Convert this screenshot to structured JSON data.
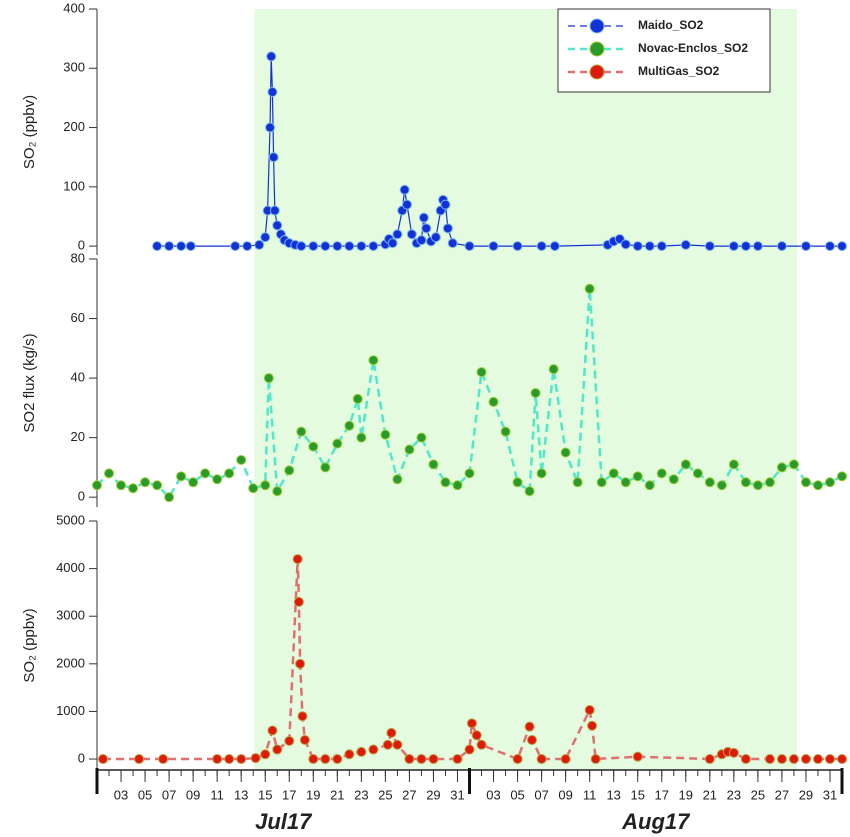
{
  "chart_data": [
    {
      "type": "scatter",
      "ylabel": "SO₂ (ppbv)",
      "xlim": [
        1,
        63
      ],
      "ylim": [
        -15,
        400
      ],
      "yticks": [
        0,
        100,
        200,
        300,
        400
      ],
      "highlight_range": [
        14.1,
        59.25
      ],
      "highlight_color": "#e4fbdf",
      "legend": "upper right",
      "series": [
        {
          "name": "Maido_SO2",
          "color": "#1232d8",
          "edge": "#7ab8ee",
          "line_color": "#1232d8",
          "line_style": "solid",
          "x": [
            6,
            7,
            8,
            8.8,
            12.5,
            13.5,
            14.5,
            15,
            15.2,
            15.4,
            15.5,
            15.6,
            15.7,
            15.8,
            16,
            16.3,
            16.6,
            17,
            17.5,
            18,
            19,
            20,
            21,
            22,
            23,
            24,
            25,
            25.3,
            25.6,
            26,
            26.4,
            26.6,
            26.8,
            27.2,
            27.6,
            28,
            28.2,
            28.4,
            28.8,
            29.2,
            29.6,
            29.8,
            30,
            30.2,
            30.6,
            32,
            34,
            36,
            38,
            39.1,
            43.5,
            44,
            44.5,
            45,
            46,
            47,
            48,
            50,
            52,
            54,
            55,
            56,
            58,
            60,
            62,
            63
          ],
          "values": [
            0,
            0,
            0,
            0,
            0,
            0,
            2,
            15,
            60,
            200,
            320,
            260,
            150,
            60,
            35,
            20,
            10,
            5,
            2,
            0,
            0,
            0,
            0,
            0,
            0,
            0,
            3,
            12,
            5,
            20,
            60,
            95,
            70,
            20,
            5,
            10,
            48,
            30,
            8,
            15,
            60,
            78,
            70,
            30,
            5,
            0,
            0,
            0,
            0,
            0,
            2,
            8,
            12,
            3,
            0,
            0,
            0,
            2,
            0,
            0,
            0,
            0,
            0,
            0,
            0,
            0
          ]
        }
      ]
    },
    {
      "type": "scatter",
      "ylabel": "SO2 flux (kg/s)",
      "xlim": [
        1,
        63
      ],
      "ylim": [
        -3.3,
        80
      ],
      "yticks": [
        0,
        20,
        40,
        60,
        80
      ],
      "highlight_range": [
        14.1,
        59.25
      ],
      "highlight_color": "#e4fbdf",
      "series": [
        {
          "name": "Novac-Enclos_SO2",
          "color": "#2a9a2a",
          "edge": "#9acd32",
          "line_color": "#50e8c8",
          "line_style": "dashed",
          "x": [
            1,
            2,
            3,
            4,
            5,
            6,
            7,
            8,
            9,
            10,
            11,
            12,
            13,
            14,
            15,
            15.3,
            16,
            17,
            18,
            19,
            20,
            21,
            22,
            22.7,
            23,
            24,
            25,
            26,
            27,
            28,
            29,
            30,
            31,
            32,
            33,
            34,
            35,
            36,
            37,
            37.5,
            38,
            39,
            40,
            41,
            42,
            43,
            44,
            45,
            46,
            47,
            48,
            49,
            50,
            51,
            52,
            53,
            54,
            55,
            56,
            57,
            58,
            59,
            60,
            61,
            62,
            63
          ],
          "values": [
            4,
            8,
            4,
            3,
            5,
            4,
            0,
            7,
            5,
            8,
            6,
            8,
            12.5,
            3,
            4,
            40,
            2,
            9,
            22,
            17,
            10,
            18,
            24,
            33,
            20,
            46,
            21,
            6,
            16,
            20,
            11,
            5,
            4,
            8,
            42,
            32,
            22,
            5,
            2,
            35,
            8,
            43,
            15,
            5,
            70,
            5,
            8,
            5,
            7,
            4,
            8,
            6,
            11,
            8,
            5,
            4,
            11,
            5,
            4,
            5,
            10,
            11,
            5,
            4,
            5,
            7
          ]
        }
      ]
    },
    {
      "type": "scatter",
      "ylabel": "SO₂ (ppbv)",
      "xlim": [
        1,
        63
      ],
      "ylim": [
        -230,
        5000
      ],
      "yticks": [
        0,
        1000,
        2000,
        3000,
        4000,
        5000
      ],
      "highlight_range": [
        14.1,
        59.25
      ],
      "highlight_color": "#e4fbdf",
      "xticks": [
        {
          "value": 3,
          "label": "03"
        },
        {
          "value": 5,
          "label": "05"
        },
        {
          "value": 7,
          "label": "07"
        },
        {
          "value": 9,
          "label": "09"
        },
        11,
        13,
        15,
        17,
        19,
        21,
        23,
        25,
        27,
        29,
        31,
        {
          "value": 34,
          "label": "03"
        },
        {
          "value": 36,
          "label": "05"
        },
        {
          "value": 38,
          "label": "07"
        },
        {
          "value": 40,
          "label": "09"
        },
        {
          "value": 42,
          "label": "11"
        },
        {
          "value": 44,
          "label": "13"
        },
        {
          "value": 46,
          "label": "15"
        },
        {
          "value": 48,
          "label": "17"
        },
        {
          "value": 50,
          "label": "19"
        },
        {
          "value": 52,
          "label": "21"
        },
        {
          "value": 54,
          "label": "23"
        },
        {
          "value": 56,
          "label": "25"
        },
        {
          "value": 58,
          "label": "27"
        },
        {
          "value": 60,
          "label": "29"
        },
        {
          "value": 62,
          "label": "31"
        }
      ],
      "month_ticks": [
        {
          "value": 1,
          "label": "Jul17"
        },
        {
          "value": 32,
          "label": "Aug17"
        },
        {
          "value": 63
        }
      ],
      "series": [
        {
          "name": "MultiGas_SO2",
          "color": "#e01a0a",
          "edge": "#b8a040",
          "line_color": "#e07070",
          "line_style": "dashed",
          "x": [
            1.5,
            4.5,
            6.5,
            11,
            12,
            13,
            14.2,
            15,
            15.6,
            16,
            17,
            17.7,
            17.8,
            17.9,
            18.1,
            18.3,
            19,
            20,
            21,
            22,
            23,
            24,
            25.2,
            25.5,
            26,
            27,
            28,
            29,
            31,
            32,
            32.2,
            32.6,
            33,
            36,
            37,
            37.2,
            38,
            40,
            42,
            42.2,
            42.5,
            46,
            52,
            53,
            53.5,
            54,
            55,
            57,
            58,
            59,
            60,
            61,
            62,
            63
          ],
          "values": [
            0,
            0,
            0,
            0,
            0,
            0,
            20,
            100,
            600,
            200,
            380,
            4200,
            3300,
            2000,
            900,
            400,
            0,
            0,
            0,
            100,
            150,
            200,
            300,
            550,
            300,
            0,
            0,
            0,
            0,
            200,
            750,
            500,
            300,
            0,
            680,
            400,
            0,
            0,
            1030,
            700,
            0,
            50,
            0,
            100,
            150,
            130,
            0,
            0,
            0,
            0,
            0,
            0,
            0,
            0
          ]
        }
      ]
    }
  ]
}
